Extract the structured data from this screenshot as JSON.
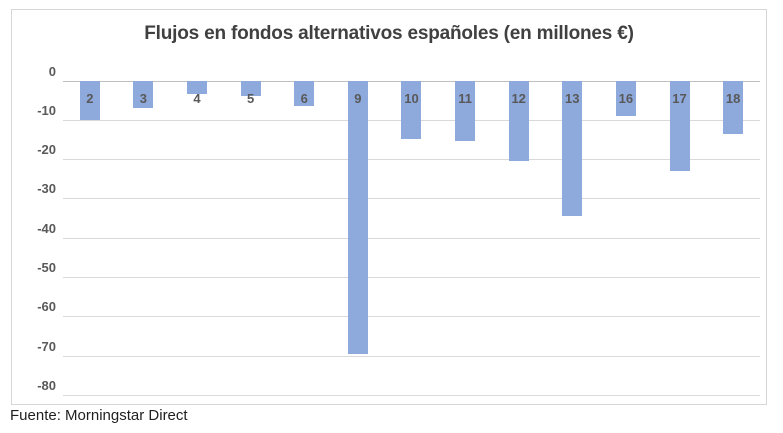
{
  "title": "Flujos en fondos alternativos españoles (en millones €)",
  "source_caption": "Fuente: Morningstar Direct",
  "colors": {
    "bar": "#8EA9DB",
    "gridline": "#D9D9D9",
    "zero_axis": "#BFBFBF",
    "title_text": "#404040",
    "axis_label_text": "#595959",
    "chart_border": "#D6D6D6"
  },
  "chart_data": {
    "type": "bar",
    "title": "Flujos en fondos alternativos españoles (en millones €)",
    "categories": [
      "2",
      "3",
      "4",
      "5",
      "6",
      "9",
      "10",
      "11",
      "12",
      "13",
      "16",
      "17",
      "18"
    ],
    "values": [
      -10,
      -7,
      -3.5,
      -4,
      -6.5,
      -69.5,
      -15,
      -15.3,
      -20.5,
      -34.5,
      -9,
      -23,
      -13.5
    ],
    "xlabel": "",
    "ylabel": "",
    "ylim": [
      -80,
      0
    ],
    "yticks": [
      0,
      -10,
      -20,
      -30,
      -40,
      -50,
      -60,
      -70,
      -80
    ],
    "grid": true,
    "legend": false,
    "bar_label_position": "inside-top",
    "source": "Fuente: Morningstar Direct"
  }
}
